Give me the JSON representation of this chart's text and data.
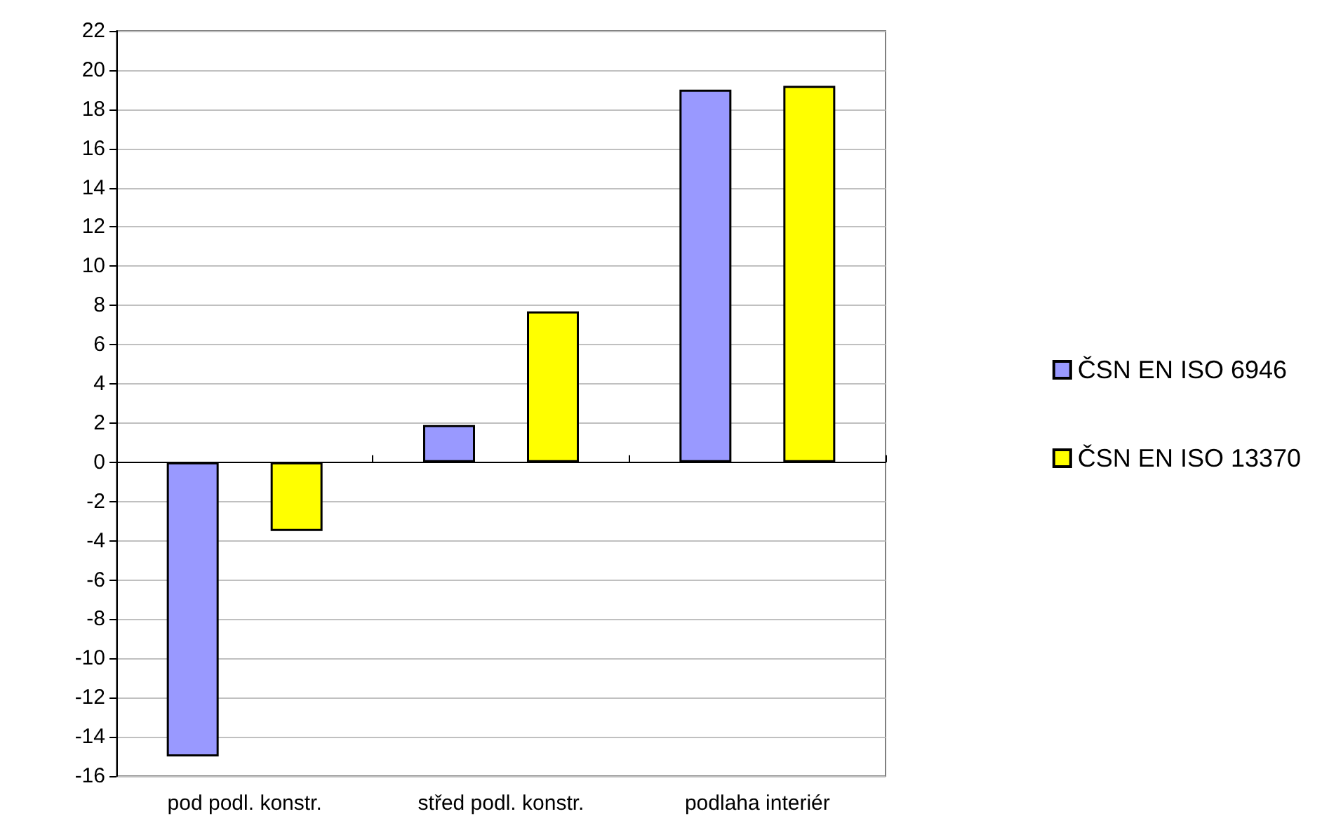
{
  "chart_data": {
    "type": "bar",
    "categories": [
      "pod podl. konstr.",
      "střed podl. konstr.",
      "podlaha interiér"
    ],
    "series": [
      {
        "name": "ČSN EN ISO 6946",
        "color": "#9999ff",
        "values": [
          -15,
          1.9,
          19
        ]
      },
      {
        "name": "ČSN EN ISO 13370",
        "color": "#ffff00",
        "values": [
          -3.5,
          7.7,
          19.2
        ]
      }
    ],
    "ylim": [
      -16,
      22
    ],
    "yticks": [
      -16,
      -14,
      -12,
      -10,
      -8,
      -6,
      -4,
      -2,
      0,
      2,
      4,
      6,
      8,
      10,
      12,
      14,
      16,
      18,
      20,
      22
    ],
    "grid": "y",
    "legend": "right"
  }
}
